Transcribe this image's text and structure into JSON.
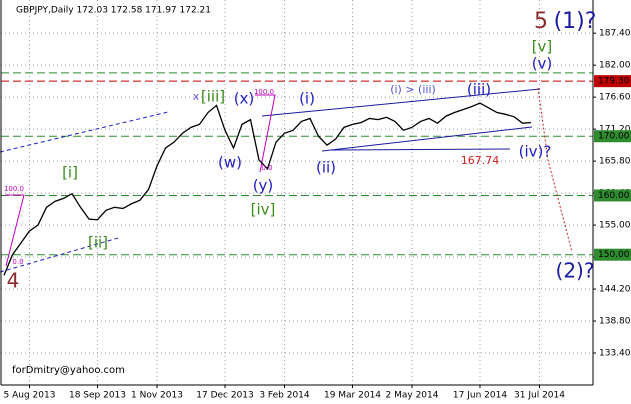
{
  "chart_data": {
    "type": "line",
    "title": "GBPJPY,Daily  172.03 172.58 171.97 172.21",
    "categories": [
      null,
      null,
      null,
      "5 Aug 2013",
      null,
      null,
      null,
      null,
      null,
      null,
      null,
      "18 Sep 2013",
      null,
      null,
      null,
      null,
      null,
      null,
      "1 Nov 2013",
      null,
      null,
      null,
      null,
      null,
      null,
      null,
      "17 Dec 2013",
      null,
      null,
      null,
      null,
      null,
      null,
      "3 Feb 2014",
      null,
      null,
      null,
      null,
      null,
      null,
      null,
      "19 Mar 2014",
      null,
      null,
      null,
      null,
      null,
      null,
      "2 May 2014",
      null,
      null,
      null,
      null,
      null,
      null,
      null,
      "17 Jun 2014",
      null,
      null,
      null,
      null,
      null,
      null,
      "31 Jul 2014",
      null,
      null,
      null,
      null,
      null,
      null
    ],
    "series": [
      {
        "name": "GBPJPY",
        "color": "#000000",
        "values": [
          146.5,
          150,
          152,
          154,
          155,
          158,
          159,
          159.5,
          160.3,
          158,
          156,
          155.9,
          157.5,
          158,
          157.8,
          158.6,
          159.2,
          161,
          165,
          168,
          169,
          170.5,
          171.5,
          172,
          174,
          175.2,
          171,
          168,
          172,
          172.8,
          166,
          164.5,
          169,
          170.5,
          171,
          172.5,
          173,
          170,
          168.5,
          169.5,
          171.5,
          172,
          172.3,
          173,
          172.8,
          173.2,
          172.5,
          171,
          171.5,
          172.5,
          173,
          172.2,
          173.4,
          174,
          174.5,
          175,
          175.6,
          174.8,
          174,
          173.7,
          173.3,
          172.2,
          172.3,
          null,
          null,
          null,
          null,
          null,
          null,
          null
        ]
      }
    ],
    "ylim": [
      128,
      193
    ],
    "yticks": [
      {
        "value": 187.4,
        "label": "187.40"
      },
      {
        "value": 182,
        "label": "182.00"
      },
      {
        "value": 176.6,
        "label": "176.60"
      },
      {
        "value": 171.2,
        "label": "171.20"
      },
      {
        "value": 165.8,
        "label": "165.80"
      },
      {
        "value": 160.4,
        "label": "160.40"
      },
      {
        "value": 155,
        "label": "155.00"
      },
      {
        "value": 149.6,
        "label": "149.60"
      },
      {
        "value": 144.2,
        "label": "144.20"
      },
      {
        "value": 138.8,
        "label": "138.80"
      },
      {
        "value": 133.4,
        "label": "133.40"
      }
    ],
    "grid": true,
    "levels": [
      {
        "value": 180.7,
        "color": "#2e8b2e"
      },
      {
        "value": 179.3,
        "label": "179.30",
        "color": "#c00000"
      },
      {
        "value": 170,
        "label": "170.00",
        "color": "#2e8b2e"
      },
      {
        "value": 160,
        "label": "160.00",
        "color": "#2e8b2e"
      },
      {
        "value": 150,
        "label": "150.00",
        "color": "#2e8b2e"
      }
    ],
    "annotations": [
      {
        "text": "5",
        "color": "#8b2c2c"
      },
      {
        "text": "(1)?",
        "color": "#1a1aa0"
      },
      {
        "text": "[v]",
        "color": "#3a8a1a"
      },
      {
        "text": "(v)",
        "color": "#2020c0"
      },
      {
        "text": "x",
        "color": "#6a5acd"
      },
      {
        "text": "[iii]",
        "color": "#3a8a1a"
      },
      {
        "text": "(x)",
        "color": "#2020c0"
      },
      {
        "text": "(i)",
        "color": "#2020c0"
      },
      {
        "text": "(i) > (iii)",
        "color": "#5050d0"
      },
      {
        "text": "(iii)",
        "color": "#2020c0"
      },
      {
        "text": "(w)",
        "color": "#2020c0"
      },
      {
        "text": "(y)",
        "color": "#2020c0"
      },
      {
        "text": "[iv]",
        "color": "#3a8a1a"
      },
      {
        "text": "(ii)",
        "color": "#2020c0"
      },
      {
        "text": "(iv)?",
        "color": "#2020c0"
      },
      {
        "text": "167.74",
        "color": "#d02020"
      },
      {
        "text": "(2)?",
        "color": "#1a1aa0"
      },
      {
        "text": "[i]",
        "color": "#3a8a1a"
      },
      {
        "text": "[ii]",
        "color": "#3a8a1a"
      },
      {
        "text": "4",
        "color": "#8b2c2c"
      },
      {
        "text": "forDmitry@yahoo.com",
        "color": "#000000"
      },
      {
        "text": "100.0",
        "color": "#c000c0"
      },
      {
        "text": "0.0",
        "color": "#c000c0"
      },
      {
        "text": "100.0",
        "color": "#c000c0"
      },
      {
        "text": "0.0",
        "color": "#c000c0"
      }
    ]
  }
}
